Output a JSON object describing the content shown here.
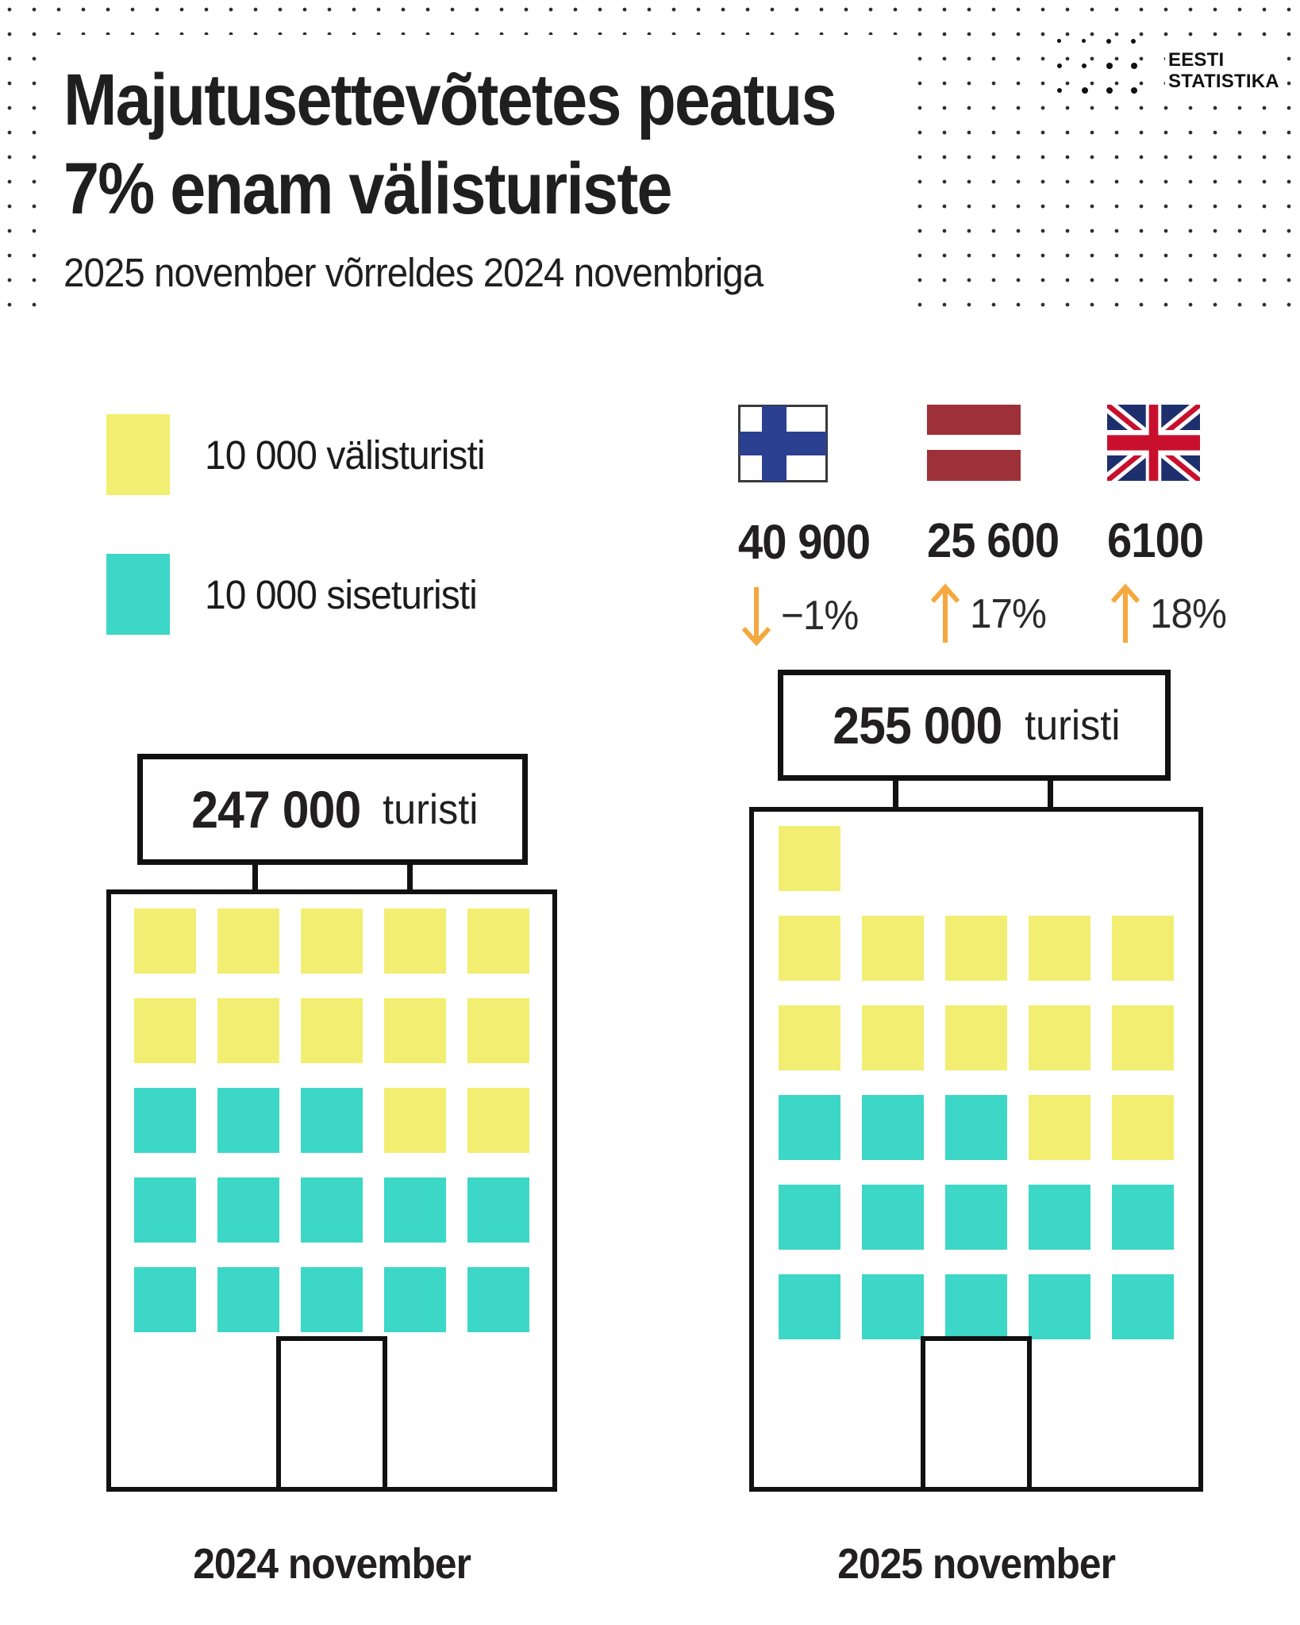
{
  "header": {
    "title_line1": "Majutusettevõtetes peatus",
    "title_line2": "7% enam välisturiste",
    "subtitle": "2025 november võrreldes 2024 novembriga",
    "logo_line1": "EESTI",
    "logo_line2": "STATISTIKA"
  },
  "legend": {
    "items": [
      {
        "label": "10 000 välisturisti",
        "color_key": "foreign"
      },
      {
        "label": "10 000 siseturisti",
        "color_key": "domestic"
      }
    ]
  },
  "countries": [
    {
      "country": "Finland",
      "flag_icon": "finland-flag",
      "value": "40 900",
      "change": "−1%",
      "direction": "down"
    },
    {
      "country": "Latvia",
      "flag_icon": "latvia-flag",
      "value": "25 600",
      "change": "17%",
      "direction": "up"
    },
    {
      "country": "United Kingdom",
      "flag_icon": "uk-flag",
      "value": "6100",
      "change": "18%",
      "direction": "up"
    }
  ],
  "buildings": [
    {
      "sign_value": "247 000",
      "sign_unit": "turisti",
      "label": "2024 november",
      "rows": [
        "YYYYY",
        "YYYYY",
        "TTTYY",
        "TTTTT",
        "TTTTT"
      ]
    },
    {
      "sign_value": "255 000",
      "sign_unit": "turisti",
      "label": "2025 november",
      "rows": [
        "Y____",
        "YYYYY",
        "YYYYY",
        "TTTYY",
        "TTTTT",
        "TTTTT"
      ]
    }
  ],
  "colors": {
    "foreign": "#F2EE71",
    "domestic": "#3CD7C6",
    "arrow_orange": "#F5A83E",
    "outline_black": "#111111",
    "finland_blue": "#2B4091",
    "latvia_red": "#9E3039",
    "uk_navy": "#1E2F6E",
    "uk_red": "#C8102E"
  },
  "chart_data": {
    "type": "pictogram",
    "title": "Majutusettevõtetes peatus 7% enam välisturiste",
    "subtitle": "2025 november võrreldes 2024 novembriga",
    "unit_per_icon": 10000,
    "categories": [
      "2024 november",
      "2025 november"
    ],
    "series": [
      {
        "name": "välisturistid (10 000 välisturisti / ruut)",
        "icon_counts": [
          12,
          13
        ]
      },
      {
        "name": "siseturistid (10 000 siseturisti / ruut)",
        "icon_counts": [
          13,
          13
        ]
      }
    ],
    "totals": [
      247000,
      255000
    ],
    "totals_labels": [
      "247 000 turisti",
      "255 000 turisti"
    ],
    "callouts": [
      {
        "country": "Finland",
        "value": 40900,
        "change_pct": -1
      },
      {
        "country": "Latvia",
        "value": 25600,
        "change_pct": 17
      },
      {
        "country": "United Kingdom",
        "value": 6100,
        "change_pct": 18
      }
    ],
    "legend_position": "top-left"
  }
}
